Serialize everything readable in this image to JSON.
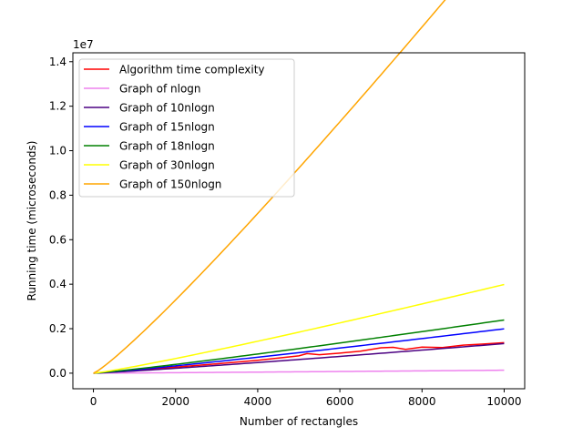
{
  "chart_data": {
    "type": "line",
    "title": "",
    "xlabel": "Number of rectangles",
    "ylabel": "Running time (microseconds)",
    "y_multiplier_label": "1e7",
    "xlim": [
      -500,
      10500
    ],
    "ylim": [
      -0.07,
      1.44
    ],
    "y_unit_scale": 10000000,
    "xticks": [
      0,
      2000,
      4000,
      6000,
      8000,
      10000
    ],
    "xtick_labels": [
      "0",
      "2000",
      "4000",
      "6000",
      "8000",
      "10000"
    ],
    "yticks": [
      0.0,
      0.2,
      0.4,
      0.6,
      0.8,
      1.0,
      1.2,
      1.4
    ],
    "ytick_labels": [
      "0.0",
      "0.2",
      "0.4",
      "0.6",
      "0.8",
      "1.0",
      "1.2",
      "1.4"
    ],
    "grid": false,
    "legend_position": "top-left",
    "series": [
      {
        "name": "Algorithm time complexity",
        "color": "#ff0000",
        "points": [
          [
            0,
            0
          ],
          [
            500,
            35000
          ],
          [
            1000,
            120000
          ],
          [
            2000,
            270000
          ],
          [
            3000,
            420000
          ],
          [
            4000,
            580000
          ],
          [
            5000,
            780000
          ],
          [
            5200,
            880000
          ],
          [
            5500,
            830000
          ],
          [
            6000,
            900000
          ],
          [
            6500,
            990000
          ],
          [
            7000,
            1140000
          ],
          [
            7300,
            1160000
          ],
          [
            7600,
            1070000
          ],
          [
            8000,
            1170000
          ],
          [
            8500,
            1150000
          ],
          [
            9000,
            1260000
          ],
          [
            9500,
            1310000
          ],
          [
            10000,
            1370000
          ]
        ]
      },
      {
        "name": "Graph of nlogn",
        "color": "#ee82ee",
        "function": "nlogn",
        "coefficient": 1
      },
      {
        "name": "Graph of 10nlogn",
        "color": "#4b0082",
        "function": "nlogn",
        "coefficient": 10
      },
      {
        "name": "Graph of 15nlogn",
        "color": "#0000ff",
        "function": "nlogn",
        "coefficient": 15
      },
      {
        "name": "Graph of 18nlogn",
        "color": "#008000",
        "function": "nlogn",
        "coefficient": 18
      },
      {
        "name": "Graph of 30nlogn",
        "color": "#ffff00",
        "function": "nlogn",
        "coefficient": 30
      },
      {
        "name": "Graph of 150nlogn",
        "color": "#ffa500",
        "function": "nlogn",
        "coefficient": 150
      }
    ]
  }
}
